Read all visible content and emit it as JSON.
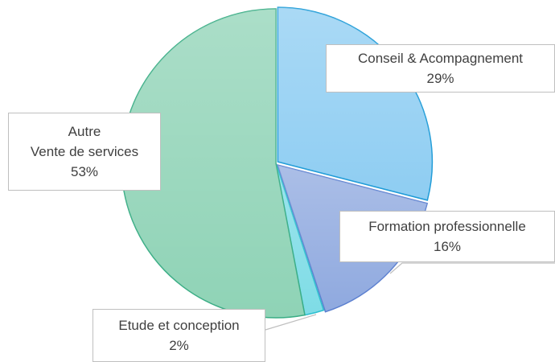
{
  "chart_data": {
    "type": "pie",
    "categories": [
      "Conseil & Acompagnement",
      "Formation professionnelle",
      "Etude et conception",
      "Autre\nVente de services"
    ],
    "values": [
      29,
      16,
      2,
      53
    ],
    "value_labels": [
      "29%",
      "16%",
      "2%",
      "53%"
    ],
    "colors": [
      "#8ecdf2",
      "#8fa9df",
      "#7edce6",
      "#8fd3b6"
    ],
    "stroke_colors": [
      "#1e9bd7",
      "#5b7fcf",
      "#2cbfcf",
      "#3aad85"
    ],
    "start_angle": 0,
    "direction": "clockwise",
    "legend": false
  }
}
